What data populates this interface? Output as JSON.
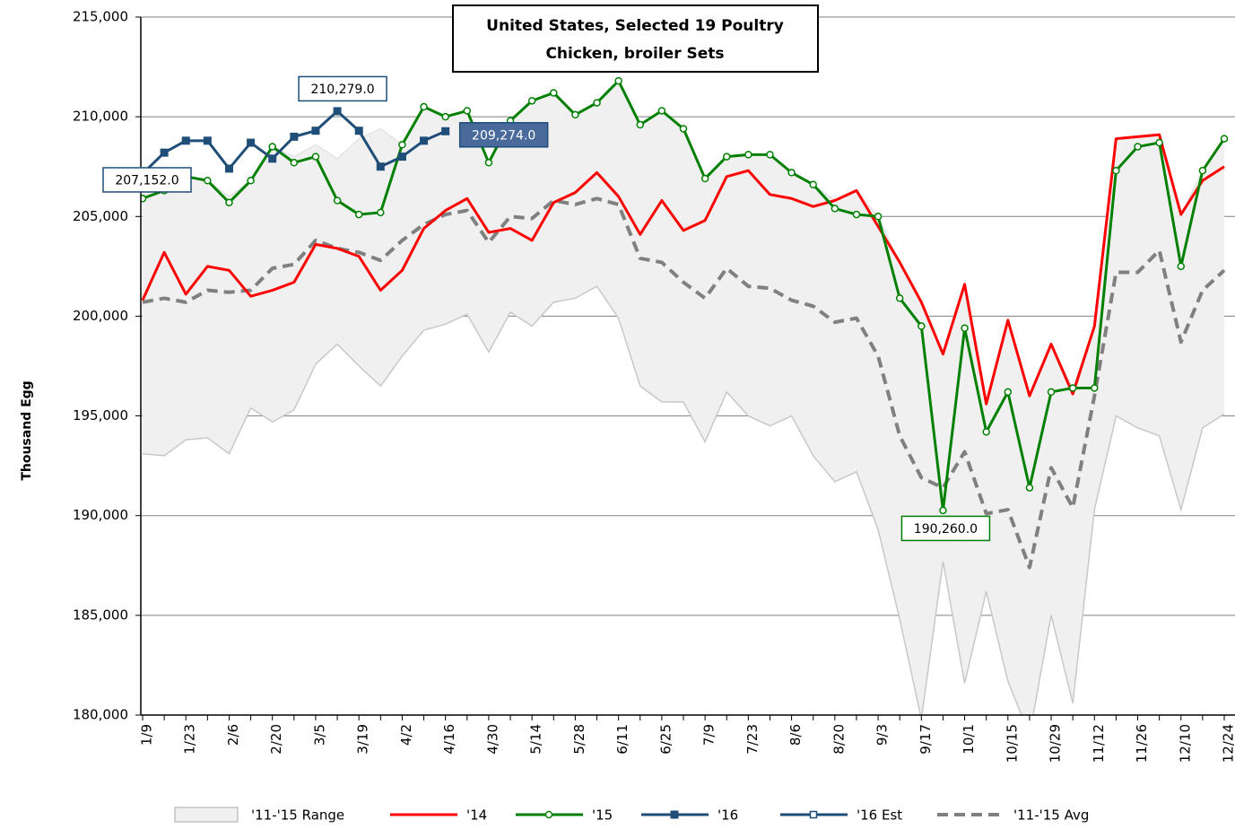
{
  "chart_data": {
    "type": "line",
    "title": "United States, Selected 19 Poultry",
    "subtitle": "Chicken, broiler Sets",
    "y_label": "Thousand Egg",
    "ylim": [
      180000,
      215000
    ],
    "yticks": [
      {
        "value": 180000,
        "label": "180,000"
      },
      {
        "value": 185000,
        "label": "185,000"
      },
      {
        "value": 190000,
        "label": "190,000"
      },
      {
        "value": 195000,
        "label": "195,000"
      },
      {
        "value": 200000,
        "label": "200,000"
      },
      {
        "value": 205000,
        "label": "205,000"
      },
      {
        "value": 210000,
        "label": "210,000"
      },
      {
        "value": 215000,
        "label": "215,000"
      }
    ],
    "grid": true,
    "legend": "bottom",
    "categories": [
      "1/9",
      null,
      "1/23",
      null,
      "2/6",
      null,
      "2/20",
      null,
      "3/5",
      null,
      "3/19",
      null,
      "4/2",
      null,
      "4/16",
      null,
      "4/30",
      null,
      "5/14",
      null,
      "5/28",
      null,
      "6/11",
      null,
      "6/25",
      null,
      "7/9",
      null,
      "7/23",
      null,
      "8/6",
      null,
      "8/20",
      null,
      "9/3",
      null,
      "9/17",
      null,
      "10/1",
      null,
      "10/15",
      null,
      "10/29",
      null,
      "11/12",
      null,
      "11/26",
      null,
      "12/10",
      null,
      "12/24"
    ],
    "series": [
      {
        "name": "'11-'15 Range",
        "type": "range",
        "color": "#c8c8c8",
        "high": [
          206200,
          206500,
          207000,
          206800,
          206000,
          206800,
          208500,
          208000,
          208600,
          207900,
          208900,
          209400,
          208600,
          210500,
          210000,
          210300,
          207700,
          209800,
          210800,
          211200,
          210100,
          210700,
          211800,
          209600,
          210300,
          209400,
          206900,
          208000,
          208100,
          208100,
          207200,
          206600,
          205800,
          206300,
          205000,
          202700,
          200700,
          198100,
          201600,
          195600,
          199800,
          196000,
          198600,
          196400,
          199500,
          208900,
          209000,
          209100,
          205100,
          207300,
          208900
        ],
        "low": [
          193100,
          193000,
          193800,
          193900,
          193100,
          195400,
          194700,
          195300,
          197600,
          198600,
          197500,
          196500,
          198000,
          199300,
          199600,
          200100,
          198200,
          200200,
          199500,
          200700,
          200900,
          201500,
          199900,
          196500,
          195700,
          195700,
          193700,
          196200,
          195000,
          194500,
          195000,
          193000,
          191700,
          192200,
          189300,
          184800,
          179800,
          187700,
          181600,
          186200,
          181700,
          179000,
          185000,
          180600,
          190300,
          195000,
          194400,
          194000,
          190300,
          194400,
          195100
        ]
      },
      {
        "name": "'14",
        "type": "line",
        "color": "#ff0000",
        "values": [
          200800,
          203200,
          201100,
          202500,
          202300,
          201000,
          201300,
          201700,
          203600,
          203400,
          203000,
          201300,
          202300,
          204400,
          205300,
          205900,
          204200,
          204400,
          203800,
          205700,
          206200,
          207200,
          206000,
          204100,
          205800,
          204300,
          204800,
          207000,
          207300,
          206100,
          205900,
          205500,
          205800,
          206300,
          204500,
          202700,
          200700,
          198100,
          201600,
          195600,
          199800,
          196000,
          198600,
          196100,
          199500,
          208900,
          209000,
          209100,
          205100,
          206800,
          207500
        ]
      },
      {
        "name": "'15",
        "type": "line",
        "color": "#008000",
        "marker": "circle",
        "values": [
          205900,
          206300,
          207000,
          206800,
          205700,
          206800,
          208500,
          207700,
          208000,
          205800,
          205100,
          205200,
          208600,
          210500,
          210000,
          210300,
          207700,
          209800,
          210800,
          211200,
          210100,
          210700,
          211800,
          209600,
          210300,
          209400,
          206900,
          208000,
          208100,
          208100,
          207200,
          206600,
          205400,
          205100,
          205000,
          200900,
          199500,
          190260,
          199400,
          194200,
          196200,
          191400,
          196200,
          196400,
          196400,
          207300,
          208500,
          208700,
          202500,
          207300,
          208900
        ],
        "value_labels": [
          null,
          null,
          null,
          null,
          null,
          null,
          null,
          null,
          null,
          null,
          null,
          null,
          null,
          null,
          null,
          null,
          null,
          null,
          null,
          null,
          null,
          null,
          null,
          null,
          null,
          null,
          null,
          null,
          null,
          null,
          null,
          null,
          null,
          null,
          null,
          null,
          null,
          "190,260.0",
          null,
          null,
          null,
          null,
          null,
          null,
          null,
          null,
          null,
          null,
          null,
          null,
          null
        ]
      },
      {
        "name": "'16",
        "type": "line",
        "color": "#1f4e79",
        "marker": "square",
        "values": [
          207152,
          208200,
          208800,
          208800,
          207400,
          208700,
          207900,
          209000,
          209300,
          210279,
          209300,
          207500,
          208000,
          208800,
          209274,
          null,
          null,
          null,
          null,
          null,
          null,
          null,
          null,
          null,
          null,
          null,
          null,
          null,
          null,
          null,
          null,
          null,
          null,
          null,
          null,
          null,
          null,
          null,
          null,
          null,
          null,
          null,
          null,
          null,
          null,
          null,
          null,
          null,
          null,
          null,
          null
        ],
        "value_labels": [
          "207,152.0",
          null,
          null,
          null,
          null,
          null,
          null,
          null,
          null,
          "210,279.0",
          null,
          null,
          null,
          null,
          "209,274.0",
          null,
          null,
          null,
          null,
          null,
          null,
          null,
          null,
          null,
          null,
          null,
          null,
          null,
          null,
          null,
          null,
          null,
          null,
          null,
          null,
          null,
          null,
          null,
          null,
          null,
          null,
          null,
          null,
          null,
          null,
          null,
          null,
          null,
          null,
          null,
          null
        ]
      },
      {
        "name": "'16 Est",
        "type": "line",
        "color": "#1f4e79",
        "marker": "open-square",
        "values": [
          null,
          null,
          null,
          null,
          null,
          null,
          null,
          null,
          null,
          null,
          null,
          null,
          null,
          null,
          null,
          null,
          null,
          null,
          null,
          null,
          null,
          null,
          null,
          null,
          null,
          null,
          null,
          null,
          null,
          null,
          null,
          null,
          null,
          null,
          null,
          null,
          null,
          null,
          null,
          null,
          null,
          null,
          null,
          null,
          null,
          null,
          null,
          null,
          null,
          null,
          null
        ]
      },
      {
        "name": "'11-'15 Avg",
        "type": "line",
        "color": "#808080",
        "dash": true,
        "values": [
          200700,
          200900,
          200700,
          201300,
          201200,
          201300,
          202400,
          202600,
          203800,
          203400,
          203200,
          202800,
          203800,
          204600,
          205100,
          205300,
          203700,
          205000,
          204900,
          205800,
          205600,
          205900,
          205600,
          202900,
          202700,
          201700,
          200900,
          202400,
          201500,
          201400,
          200800,
          200500,
          199700,
          199900,
          198000,
          194000,
          191900,
          191400,
          193200,
          190100,
          190300,
          187400,
          192400,
          190400,
          196000,
          202200,
          202200,
          203300,
          198700,
          201300,
          202300
        ]
      }
    ]
  }
}
